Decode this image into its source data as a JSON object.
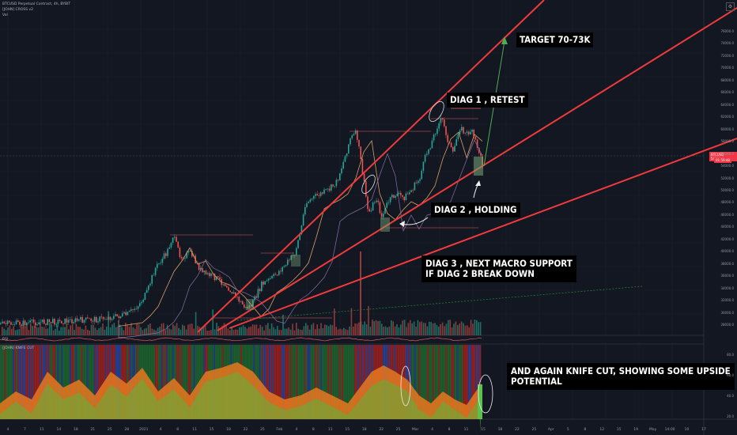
{
  "header": {
    "symbol_line": "BTCUSD Perpetual Contract, 4h, BYBIT",
    "indicator_line": "[JOHN] CROSS v2",
    "vol_label": "Vol"
  },
  "annotations": {
    "target": "TARGET 70-73K",
    "diag1": "DIAG 1 , RETEST",
    "diag2": "DIAG 2 , HOLDING",
    "diag3_line1": "DIAG 3 , NEXT MACRO SUPPORT",
    "diag3_line2": "IF DIAG 2 BREAK DOWN",
    "knife_line1": "AND AGAIN KNIFE CUT, SHOWING SOME UPSIDE",
    "knife_line2": "POTENTIAL"
  },
  "price_axis": [
    "76000.0",
    "74000.0",
    "72000.0",
    "70000.0",
    "68000.0",
    "66000.0",
    "64000.0",
    "62000.0",
    "60000.0",
    "58000.0",
    "56000.0",
    "54000.0",
    "52000.0",
    "50000.0",
    "48000.0",
    "46000.0",
    "44000.0",
    "42000.0",
    "40000.0",
    "38000.0",
    "36000.0",
    "34000.0",
    "32000.0",
    "30000.0",
    "28000.0"
  ],
  "current_price": {
    "label": "BTCUSD",
    "value": "54010.0",
    "countdown": "01:59:48"
  },
  "indicator_panel": {
    "title": "[JOHN] KNIFE CUT",
    "axis": [
      "80.0",
      "60.0",
      "40.0",
      "20.0"
    ]
  },
  "rsi_panel": {
    "title": "RSI"
  },
  "time_axis": [
    "4",
    "7",
    "11",
    "14",
    "18",
    "21",
    "25",
    "28",
    "2021",
    "4",
    "8",
    "11",
    "15",
    "18",
    "22",
    "25",
    "Feb",
    "4",
    "8",
    "11",
    "15",
    "18",
    "22",
    "25",
    "Mar",
    "4",
    "8",
    "11",
    "15",
    "18",
    "22",
    "25",
    "Apr",
    "5",
    "8",
    "12",
    "15",
    "19",
    "May",
    "14:00",
    "10",
    "17"
  ],
  "colors": {
    "background": "#131722",
    "trendline": "#ef3b3b",
    "target_arrow": "#4caf50",
    "candle_up": "#26a69a",
    "candle_down": "#ef5350"
  }
}
